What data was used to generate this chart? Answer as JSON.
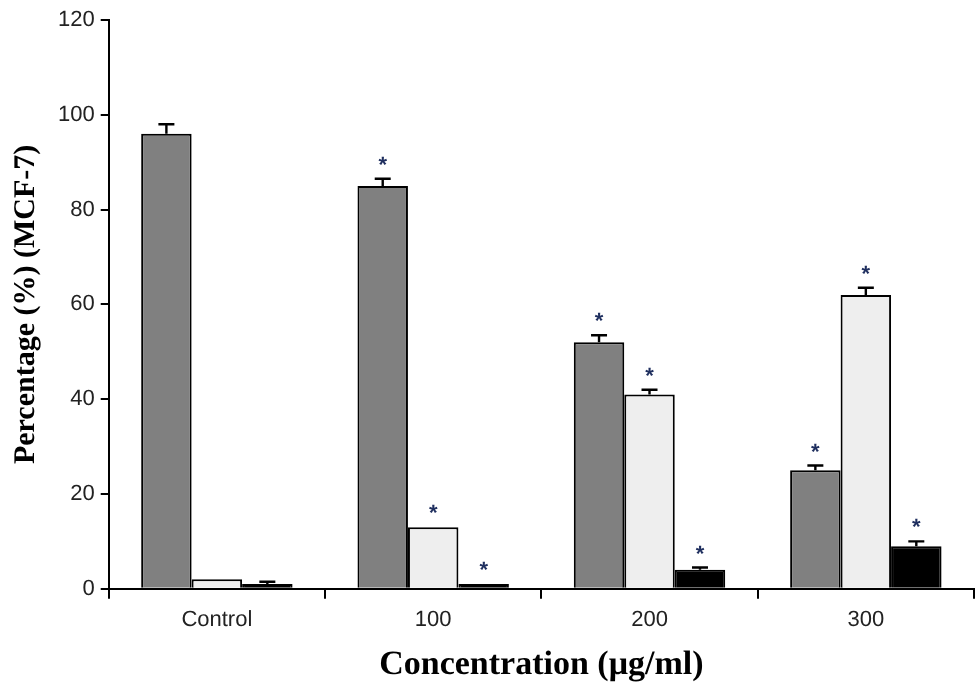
{
  "chart_data": {
    "type": "bar",
    "xlabel": "Concentration (μg/ml)",
    "ylabel": "Percentage (%) (MCF-7)",
    "categories": [
      "Control",
      "100",
      "200",
      "300"
    ],
    "series": [
      {
        "color": "#808080",
        "values": [
          96,
          85,
          52,
          25
        ],
        "errors": [
          [
            96,
            98
          ],
          [
            85,
            86.5
          ],
          [
            52,
            53.5
          ],
          [
            25,
            26
          ]
        ],
        "value_labels": [
          null,
          "*",
          "*",
          "*"
        ]
      },
      {
        "color": "#eeeeee",
        "values": [
          2,
          13,
          41,
          62
        ],
        "errors": [
          null,
          null,
          [
            41,
            42
          ],
          [
            62,
            63.5
          ]
        ],
        "value_labels": [
          null,
          "*",
          "*",
          "*"
        ]
      },
      {
        "color": "#000000",
        "values": [
          1,
          1,
          4,
          9
        ],
        "errors": [
          [
            1,
            1.5
          ],
          null,
          [
            4,
            4.5
          ],
          [
            9,
            10
          ]
        ],
        "value_labels": [
          null,
          "*",
          "*",
          "*"
        ]
      }
    ],
    "ylim": [
      0,
      120
    ],
    "yticks": [
      0,
      20,
      40,
      60,
      80,
      100,
      120
    ]
  }
}
